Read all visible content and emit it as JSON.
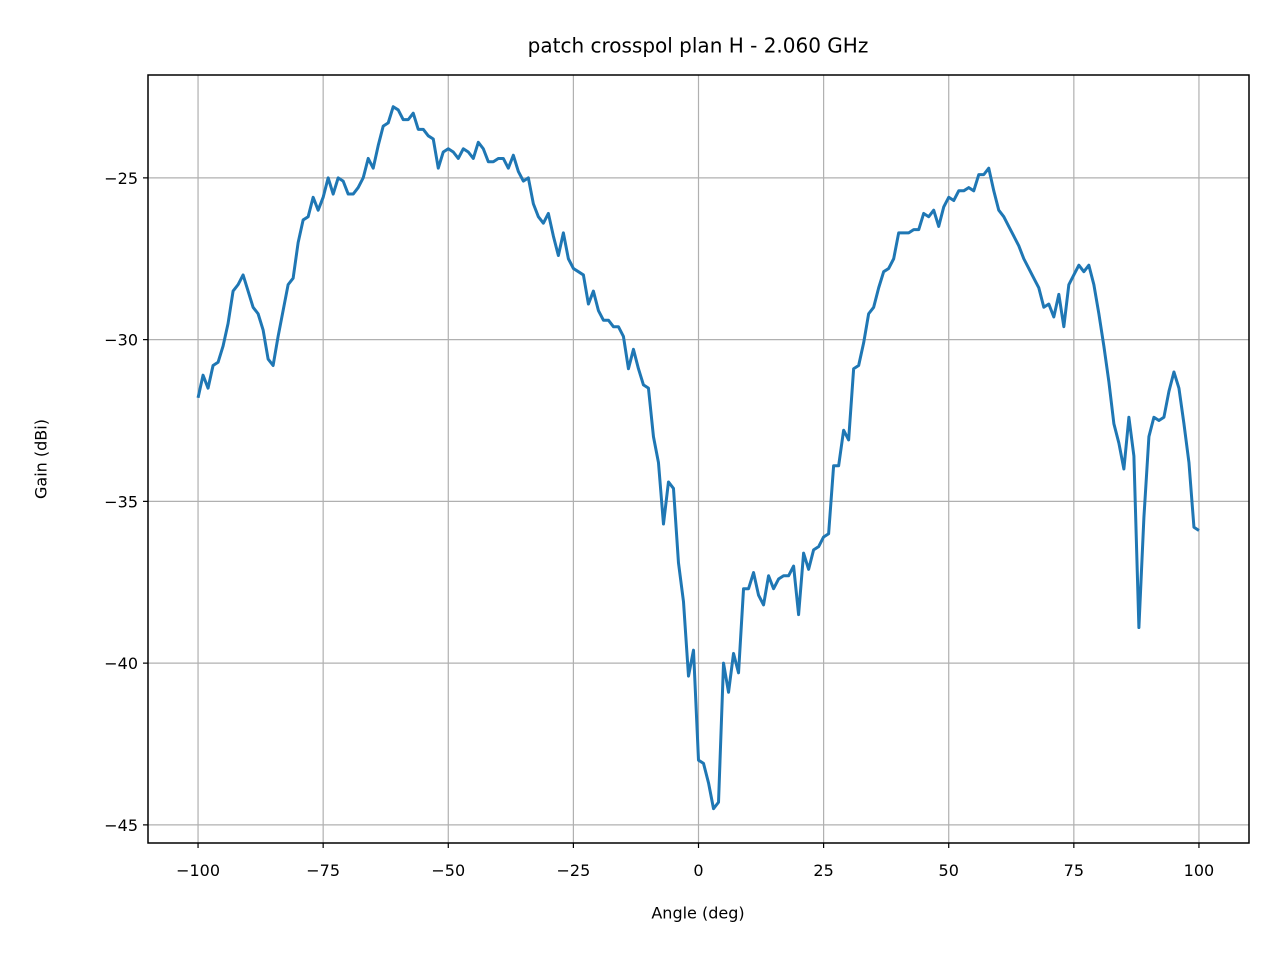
{
  "chart_data": {
    "type": "line",
    "title": "patch crosspol plan H - 2.060 GHz",
    "x_label": "Angle (deg)",
    "y_label": "Gain (dBi)",
    "xlim": [
      -110,
      110
    ],
    "ylim": [
      -45.56,
      -21.82
    ],
    "xticks": [
      {
        "value": -100,
        "label": "−100"
      },
      {
        "value": -75,
        "label": "−75"
      },
      {
        "value": -50,
        "label": "−50"
      },
      {
        "value": -25,
        "label": "−25"
      },
      0,
      25,
      50,
      75,
      100
    ],
    "yticks": [
      {
        "value": -45,
        "label": "−45"
      },
      {
        "value": -40,
        "label": "−40"
      },
      {
        "value": -35,
        "label": "−35"
      },
      {
        "value": -30,
        "label": "−30"
      },
      {
        "value": -25,
        "label": "−25"
      }
    ],
    "grid": true,
    "x": [
      -100,
      -99,
      -98,
      -97,
      -96,
      -95,
      -94,
      -93,
      -92,
      -91,
      -90,
      -89,
      -88,
      -87,
      -86,
      -85,
      -84,
      -83,
      -82,
      -81,
      -80,
      -79,
      -78,
      -77,
      -76,
      -75,
      -74,
      -73,
      -72,
      -71,
      -70,
      -69,
      -68,
      -67,
      -66,
      -65,
      -64,
      -63,
      -62,
      -61,
      -60,
      -59,
      -58,
      -57,
      -56,
      -55,
      -54,
      -53,
      -52,
      -51,
      -50,
      -49,
      -48,
      -47,
      -46,
      -45,
      -44,
      -43,
      -42,
      -41,
      -40,
      -39,
      -38,
      -37,
      -36,
      -35,
      -34,
      -33,
      -32,
      -31,
      -30,
      -29,
      -28,
      -27,
      -26,
      -25,
      -24,
      -23,
      -22,
      -21,
      -20,
      -19,
      -18,
      -17,
      -16,
      -15,
      -14,
      -13,
      -12,
      -11,
      -10,
      -9,
      -8,
      -7,
      -6,
      -5,
      -4,
      -3,
      -2,
      -1,
      0,
      1,
      2,
      3,
      4,
      5,
      6,
      7,
      8,
      9,
      10,
      11,
      12,
      13,
      14,
      15,
      16,
      17,
      18,
      19,
      20,
      21,
      22,
      23,
      24,
      25,
      26,
      27,
      28,
      29,
      30,
      31,
      32,
      33,
      34,
      35,
      36,
      37,
      38,
      39,
      40,
      41,
      42,
      43,
      44,
      45,
      46,
      47,
      48,
      49,
      50,
      51,
      52,
      53,
      54,
      55,
      56,
      57,
      58,
      59,
      60,
      61,
      62,
      63,
      64,
      65,
      66,
      67,
      68,
      69,
      70,
      71,
      72,
      73,
      74,
      75,
      76,
      77,
      78,
      79,
      80,
      81,
      82,
      83,
      84,
      85,
      86,
      87,
      88,
      89,
      90,
      91,
      92,
      93,
      94,
      95,
      96,
      97,
      98,
      99,
      100
    ],
    "series": [
      {
        "color": "#1f77b4",
        "values": [
          -31.8,
          -31.1,
          -31.5,
          -30.8,
          -30.7,
          -30.2,
          -29.5,
          -28.5,
          -28.3,
          -28.0,
          -28.5,
          -29.0,
          -29.2,
          -29.7,
          -30.6,
          -30.8,
          -29.9,
          -29.1,
          -28.3,
          -28.1,
          -27.0,
          -26.3,
          -26.2,
          -25.6,
          -26.0,
          -25.6,
          -25.0,
          -25.5,
          -25.0,
          -25.1,
          -25.5,
          -25.5,
          -25.3,
          -25.0,
          -24.4,
          -24.7,
          -24.0,
          -23.4,
          -23.3,
          -22.8,
          -22.9,
          -23.2,
          -23.2,
          -23.0,
          -23.5,
          -23.5,
          -23.7,
          -23.8,
          -24.7,
          -24.2,
          -24.1,
          -24.2,
          -24.4,
          -24.1,
          -24.2,
          -24.4,
          -23.9,
          -24.1,
          -24.5,
          -24.5,
          -24.4,
          -24.4,
          -24.7,
          -24.3,
          -24.8,
          -25.1,
          -25.0,
          -25.8,
          -26.2,
          -26.4,
          -26.1,
          -26.8,
          -27.4,
          -26.7,
          -27.5,
          -27.8,
          -27.9,
          -28.0,
          -28.9,
          -28.5,
          -29.1,
          -29.4,
          -29.4,
          -29.6,
          -29.6,
          -29.9,
          -30.9,
          -30.3,
          -30.9,
          -31.4,
          -31.5,
          -33.0,
          -33.8,
          -35.7,
          -34.4,
          -34.6,
          -36.9,
          -38.1,
          -40.4,
          -39.6,
          -43.0,
          -43.1,
          -43.7,
          -44.5,
          -44.3,
          -40.0,
          -40.9,
          -39.7,
          -40.3,
          -37.7,
          -37.7,
          -37.2,
          -37.9,
          -38.2,
          -37.3,
          -37.7,
          -37.4,
          -37.3,
          -37.3,
          -37.0,
          -38.5,
          -36.6,
          -37.1,
          -36.5,
          -36.4,
          -36.1,
          -36.0,
          -33.9,
          -33.9,
          -32.8,
          -33.1,
          -30.9,
          -30.8,
          -30.1,
          -29.2,
          -29.0,
          -28.4,
          -27.9,
          -27.8,
          -27.5,
          -26.7,
          -26.7,
          -26.7,
          -26.6,
          -26.6,
          -26.1,
          -26.2,
          -26.0,
          -26.5,
          -25.9,
          -25.6,
          -25.7,
          -25.4,
          -25.4,
          -25.3,
          -25.4,
          -24.9,
          -24.9,
          -24.7,
          -25.4,
          -26.0,
          -26.2,
          -26.5,
          -26.8,
          -27.1,
          -27.5,
          -27.8,
          -28.1,
          -28.4,
          -29.0,
          -28.9,
          -29.3,
          -28.6,
          -29.6,
          -28.3,
          -28.0,
          -27.7,
          -27.9,
          -27.7,
          -28.3,
          -29.2,
          -30.2,
          -31.3,
          -32.6,
          -33.2,
          -34.0,
          -32.4,
          -33.6,
          -38.9,
          -35.5,
          -33.0,
          -32.4,
          -32.5,
          -32.4,
          -31.6,
          -31.0,
          -31.5,
          -32.6,
          -33.8,
          -35.8,
          -35.9
        ]
      }
    ]
  }
}
